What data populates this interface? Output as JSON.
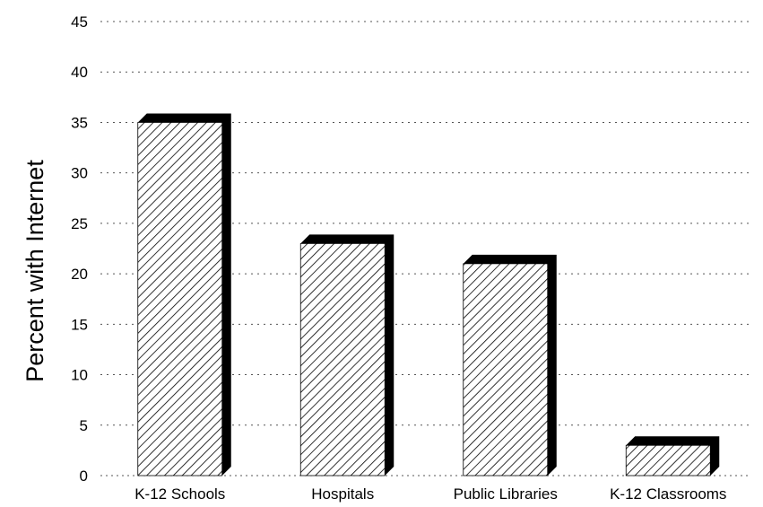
{
  "chart_data": {
    "type": "bar",
    "title": "",
    "xlabel": "",
    "ylabel": "Percent with Internet",
    "categories": [
      "K-12 Schools",
      "Hospitals",
      "Public Libraries",
      "K-12 Classrooms"
    ],
    "values": [
      35,
      23,
      21,
      3
    ],
    "ylim": [
      0,
      45
    ],
    "yticks": [
      "0",
      "5",
      "10",
      "15",
      "20",
      "25",
      "30",
      "35",
      "40",
      "45"
    ],
    "grid": true,
    "legend": "none",
    "bar_style": "3d-hatched",
    "colors": {
      "bar_face": "#ffffff",
      "hatch": "#000000",
      "bar_shadow": "#000000",
      "grid": "#555555"
    }
  }
}
